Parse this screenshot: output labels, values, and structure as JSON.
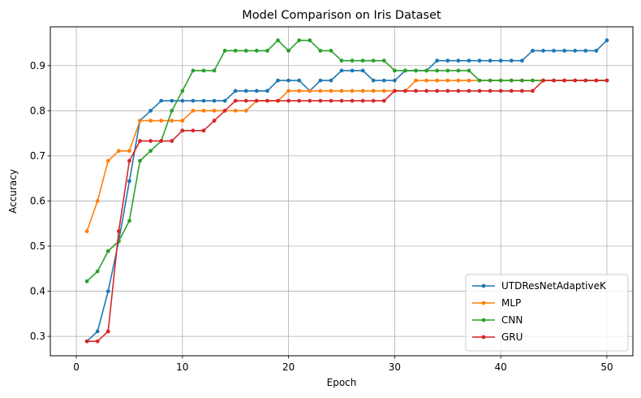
{
  "chart_data": {
    "type": "line",
    "title": "Model Comparison on Iris Dataset",
    "xlabel": "Epoch",
    "ylabel": "Accuracy",
    "xlim": [
      -2.45,
      52.45
    ],
    "ylim": [
      0.257,
      0.986
    ],
    "xticks": [
      0,
      10,
      20,
      30,
      40,
      50
    ],
    "yticks": [
      0.3,
      0.4,
      0.5,
      0.6,
      0.7,
      0.8,
      0.9
    ],
    "grid": true,
    "legend_position": "bottom-right",
    "marker": "circle",
    "x": [
      1,
      2,
      3,
      4,
      5,
      6,
      7,
      8,
      9,
      10,
      11,
      12,
      13,
      14,
      15,
      16,
      17,
      18,
      19,
      20,
      21,
      22,
      23,
      24,
      25,
      26,
      27,
      28,
      29,
      30,
      31,
      32,
      33,
      34,
      35,
      36,
      37,
      38,
      39,
      40,
      41,
      42,
      43,
      44,
      45,
      46,
      47,
      48,
      49,
      50
    ],
    "series": [
      {
        "name": "UTDResNetAdaptiveK",
        "color": "#1f77b4",
        "values": [
          0.289,
          0.311,
          0.4,
          0.511,
          0.644,
          0.778,
          0.8,
          0.822,
          0.822,
          0.822,
          0.822,
          0.822,
          0.822,
          0.822,
          0.844,
          0.844,
          0.844,
          0.844,
          0.867,
          0.867,
          0.867,
          0.844,
          0.867,
          0.867,
          0.889,
          0.889,
          0.889,
          0.867,
          0.867,
          0.867,
          0.889,
          0.889,
          0.889,
          0.911,
          0.911,
          0.911,
          0.911,
          0.911,
          0.911,
          0.911,
          0.911,
          0.911,
          0.933,
          0.933,
          0.933,
          0.933,
          0.933,
          0.933,
          0.933,
          0.956
        ]
      },
      {
        "name": "MLP",
        "color": "#ff7f0e",
        "values": [
          0.533,
          0.6,
          0.689,
          0.711,
          0.711,
          0.778,
          0.778,
          0.778,
          0.778,
          0.778,
          0.8,
          0.8,
          0.8,
          0.8,
          0.8,
          0.8,
          0.822,
          0.822,
          0.822,
          0.844,
          0.844,
          0.844,
          0.844,
          0.844,
          0.844,
          0.844,
          0.844,
          0.844,
          0.844,
          0.844,
          0.844,
          0.867,
          0.867,
          0.867,
          0.867,
          0.867,
          0.867,
          0.867,
          0.867,
          0.867,
          0.867,
          0.867,
          0.867,
          0.867,
          0.867,
          0.867,
          0.867,
          0.867,
          0.867,
          0.867
        ]
      },
      {
        "name": "CNN",
        "color": "#2ca02c",
        "values": [
          0.422,
          0.444,
          0.489,
          0.511,
          0.556,
          0.689,
          0.711,
          0.733,
          0.8,
          0.844,
          0.889,
          0.889,
          0.889,
          0.933,
          0.933,
          0.933,
          0.933,
          0.933,
          0.956,
          0.933,
          0.956,
          0.956,
          0.933,
          0.933,
          0.911,
          0.911,
          0.911,
          0.911,
          0.911,
          0.889,
          0.889,
          0.889,
          0.889,
          0.889,
          0.889,
          0.889,
          0.889,
          0.867,
          0.867,
          0.867,
          0.867,
          0.867,
          0.867,
          0.867,
          0.867,
          0.867,
          0.867,
          0.867,
          0.867,
          0.867
        ]
      },
      {
        "name": "GRU",
        "color": "#d62728",
        "values": [
          0.289,
          0.289,
          0.311,
          0.533,
          0.689,
          0.733,
          0.733,
          0.733,
          0.733,
          0.756,
          0.756,
          0.756,
          0.778,
          0.8,
          0.822,
          0.822,
          0.822,
          0.822,
          0.822,
          0.822,
          0.822,
          0.822,
          0.822,
          0.822,
          0.822,
          0.822,
          0.822,
          0.822,
          0.822,
          0.844,
          0.844,
          0.844,
          0.844,
          0.844,
          0.844,
          0.844,
          0.844,
          0.844,
          0.844,
          0.844,
          0.844,
          0.844,
          0.844,
          0.867,
          0.867,
          0.867,
          0.867,
          0.867,
          0.867,
          0.867
        ]
      }
    ]
  }
}
